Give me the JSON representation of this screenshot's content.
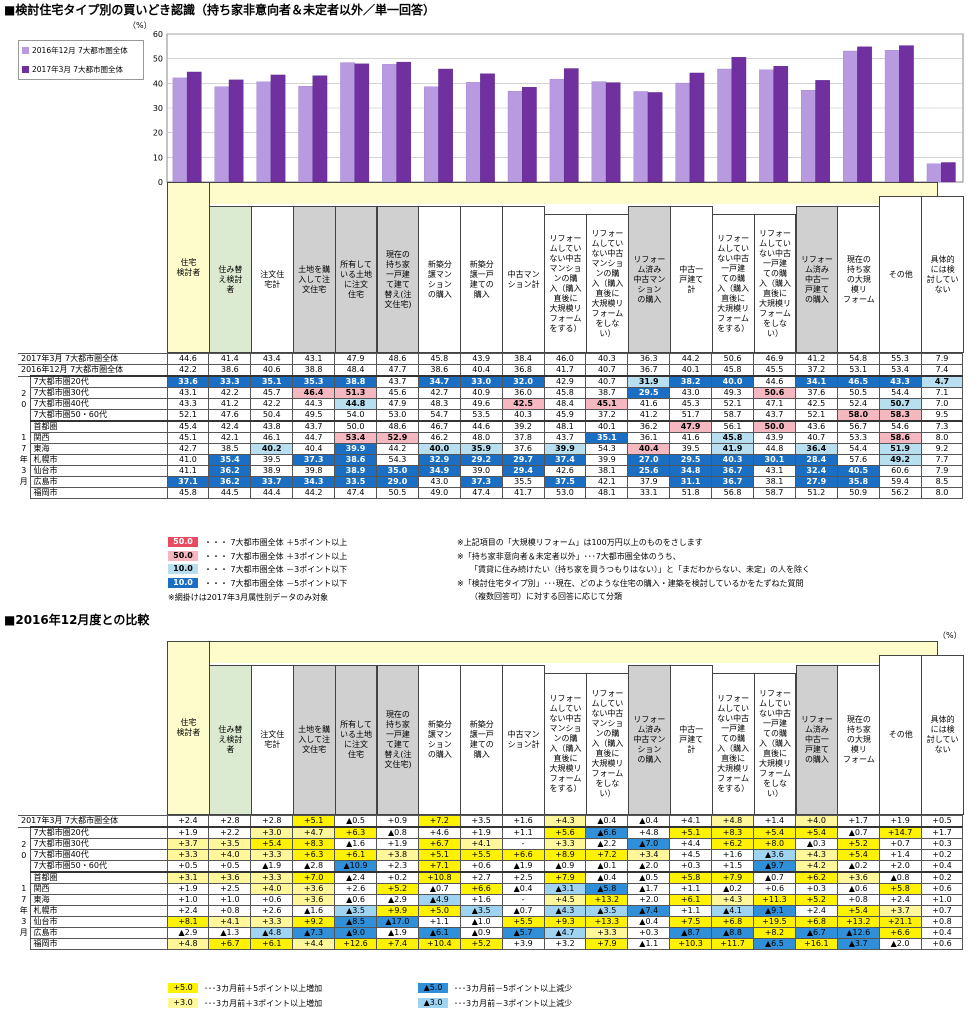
{
  "title1": "■検討住宅タイプ別の買いどき認識（持ち家非意向者＆未定者以外／単一回答）",
  "title2": "■2016年12月度との比較",
  "unit": "（%）",
  "chart_data": {
    "type": "bar",
    "categories": [
      "住宅検討者",
      "住み替え検討者",
      "注文住宅計",
      "土地を購入して注文住宅",
      "所有している土地に注文住宅",
      "現在の持ち家一戸建て建て替え（注文住宅）",
      "新築分譲マンションの購入",
      "新築分譲一戸建ての購入",
      "中古マンション計",
      "リフォームしていない中古マンションの購入（購入直後に大規模リフォームをする）",
      "リフォームしていない中古マンションの購入（購入直後に大規模リフォームをしない）",
      "リフォーム済み中古マンションの購入",
      "中古一戸建て計",
      "リフォームしていない中古一戸建ての購入（購入直後に大規模リフォームをする）",
      "リフォームしていない中古一戸建ての購入（購入直後に大規模リフォームをしない）",
      "リフォーム済み中古一戸建ての購入",
      "現在の持ち家の大規模リフォーム",
      "その他",
      "具体的には検討していない"
    ],
    "series": [
      {
        "name": "2016年12月 7大都市圏全体",
        "color": "#b89ae0",
        "values": [
          42.2,
          38.6,
          40.6,
          38.8,
          48.4,
          47.7,
          38.6,
          40.4,
          36.8,
          41.7,
          40.7,
          36.7,
          40.1,
          45.8,
          45.5,
          37.2,
          53.1,
          53.4,
          7.4
        ]
      },
      {
        "name": "2017年3月 7大都市圏全体",
        "color": "#7030a0",
        "values": [
          44.6,
          41.4,
          43.4,
          43.1,
          47.9,
          48.6,
          45.8,
          43.9,
          38.4,
          46.0,
          40.3,
          36.3,
          44.2,
          50.6,
          46.9,
          41.2,
          54.8,
          55.3,
          7.9
        ]
      }
    ],
    "ylim": [
      0,
      60
    ],
    "yticks": [
      "0",
      "10",
      "20",
      "30",
      "40",
      "50",
      "60"
    ],
    "legend": "top-left"
  },
  "headers": [
    "住宅\n検討者",
    "住み替\nえ検討\n者",
    "注文住\n宅計",
    "土地を購\n入して注\n文住宅",
    "所有して\nいる土地\nに注文\n住宅",
    "現在の\n持ち家\n一戸建\nて建て\n替え(注\n文住宅)",
    "新築分\n譲マン\nション\nの購入",
    "新築分\n譲一戸\n建ての\n購入",
    "中古マン\nション計",
    "リフォー\nムしてい\nない中古\nマンショ\nンの購\n入（購入\n直後に\n大規模リ\nフォーム\nをする）",
    "リフォー\nムしてい\nない中古\nマンショ\nンの購\n入（購入\n直後に\n大規模リ\nフォーム\nをしな\nい）",
    "リフォー\nム済み\n中古マン\nション\nの購入",
    "中古一\n戸建て\n計",
    "リフォー\nムしてい\nない中古\n一戸建\nての購\n入（購入\n直後に\n大規模リ\nフォーム\nをする）",
    "リフォー\nムしてい\nない中古\n一戸建\nての購\n入（購入\n直後に\n大規模リ\nフォーム\nをしな\nい）",
    "リフォー\nム済み\n中古一\n戸建て\nの購入",
    "現在の\n持ち家\nの大規\n模リ\nフォーム",
    "その他",
    "具体的\nには検\n討してい\nない"
  ],
  "table1": {
    "totals": [
      {
        "label": "2017年3月 7大都市圏全体",
        "cells": [
          "44.6",
          "41.4",
          "43.4",
          "43.1",
          "47.9",
          "48.6",
          "45.8",
          "43.9",
          "38.4",
          "46.0",
          "40.3",
          "36.3",
          "44.2",
          "50.6",
          "46.9",
          "41.2",
          "54.8",
          "55.3",
          "7.9"
        ]
      },
      {
        "label": "2016年12月 7大都市圏全体",
        "cells": [
          "42.2",
          "38.6",
          "40.6",
          "38.8",
          "48.4",
          "47.7",
          "38.6",
          "40.4",
          "36.8",
          "41.7",
          "40.7",
          "36.7",
          "40.1",
          "45.8",
          "45.5",
          "37.2",
          "53.1",
          "53.4",
          "7.4"
        ]
      }
    ],
    "age_group": "2017年3月",
    "ages": [
      {
        "label": "7大都市圏20代",
        "cells": [
          "33.6",
          "33.3",
          "35.1",
          "35.3",
          "38.8",
          "43.7",
          "34.7",
          "33.0",
          "32.0",
          "42.9",
          "40.7",
          "31.9",
          "38.2",
          "40.0",
          "44.6",
          "34.1",
          "46.5",
          "43.3",
          "4.7"
        ],
        "hl": [
          3,
          3,
          3,
          3,
          3,
          0,
          3,
          3,
          3,
          0,
          0,
          2,
          3,
          3,
          0,
          3,
          3,
          3,
          2
        ]
      },
      {
        "label": "7大都市圏30代",
        "cells": [
          "43.1",
          "42.2",
          "45.7",
          "46.4",
          "51.3",
          "45.6",
          "42.7",
          "40.9",
          "36.0",
          "45.8",
          "38.7",
          "29.5",
          "43.0",
          "49.3",
          "50.6",
          "37.6",
          "50.5",
          "54.4",
          "7.1"
        ],
        "hl": [
          0,
          0,
          0,
          1,
          1,
          0,
          0,
          0,
          0,
          0,
          0,
          3,
          0,
          0,
          1,
          0,
          0,
          0,
          0
        ]
      },
      {
        "label": "7大都市圏40代",
        "cells": [
          "43.3",
          "41.2",
          "42.2",
          "44.3",
          "44.8",
          "47.9",
          "48.3",
          "49.6",
          "42.5",
          "48.4",
          "45.1",
          "41.6",
          "45.3",
          "52.1",
          "47.1",
          "42.5",
          "52.4",
          "50.7",
          "7.0"
        ],
        "hl": [
          0,
          0,
          0,
          0,
          2,
          0,
          0,
          0,
          1,
          0,
          1,
          0,
          0,
          0,
          0,
          0,
          0,
          2,
          0
        ]
      },
      {
        "label": "7大都市圏50・60代",
        "cells": [
          "52.1",
          "47.6",
          "50.4",
          "49.5",
          "54.0",
          "53.0",
          "54.7",
          "53.5",
          "40.3",
          "45.9",
          "37.2",
          "41.2",
          "51.7",
          "58.7",
          "43.7",
          "52.1",
          "58.0",
          "58.3",
          "9.5"
        ],
        "hl": [
          0,
          0,
          0,
          0,
          0,
          0,
          0,
          0,
          0,
          0,
          0,
          0,
          0,
          0,
          0,
          0,
          1,
          1,
          0
        ]
      },
      {
        "label": "首都圏",
        "cells": [
          "45.4",
          "42.4",
          "43.8",
          "43.7",
          "50.0",
          "48.6",
          "46.7",
          "44.6",
          "39.2",
          "48.1",
          "40.1",
          "36.2",
          "47.9",
          "56.1",
          "50.0",
          "43.6",
          "56.7",
          "54.6",
          "7.3"
        ],
        "hl": [
          0,
          0,
          0,
          0,
          0,
          0,
          0,
          0,
          0,
          0,
          0,
          0,
          1,
          0,
          1,
          0,
          0,
          0,
          0
        ]
      },
      {
        "label": "関西",
        "cells": [
          "45.1",
          "42.1",
          "46.1",
          "44.7",
          "53.4",
          "52.9",
          "46.2",
          "48.0",
          "37.8",
          "43.7",
          "35.1",
          "36.1",
          "41.6",
          "45.8",
          "43.9",
          "40.7",
          "53.3",
          "58.6",
          "8.0"
        ],
        "hl": [
          0,
          0,
          0,
          0,
          1,
          1,
          0,
          0,
          0,
          0,
          3,
          0,
          0,
          2,
          0,
          0,
          0,
          1,
          0
        ]
      },
      {
        "label": "東海",
        "cells": [
          "42.7",
          "38.5",
          "40.2",
          "40.4",
          "39.9",
          "44.2",
          "40.0",
          "35.9",
          "37.6",
          "39.9",
          "54.3",
          "40.4",
          "39.5",
          "41.9",
          "44.8",
          "36.4",
          "54.4",
          "51.9",
          "9.2"
        ],
        "hl": [
          0,
          0,
          2,
          0,
          3,
          0,
          2,
          2,
          0,
          2,
          0,
          1,
          0,
          2,
          0,
          2,
          0,
          2,
          0
        ]
      },
      {
        "label": "札幌市",
        "cells": [
          "41.0",
          "35.4",
          "39.5",
          "37.3",
          "38.6",
          "54.3",
          "32.9",
          "29.2",
          "29.7",
          "37.4",
          "39.9",
          "27.0",
          "29.5",
          "40.3",
          "30.1",
          "28.4",
          "57.6",
          "49.2",
          "7.7"
        ],
        "hl": [
          0,
          3,
          0,
          3,
          3,
          0,
          3,
          3,
          3,
          3,
          0,
          3,
          3,
          3,
          3,
          3,
          0,
          2,
          0
        ]
      },
      {
        "label": "仙台市",
        "cells": [
          "41.1",
          "36.2",
          "38.9",
          "39.8",
          "38.9",
          "35.0",
          "34.9",
          "39.0",
          "29.4",
          "42.6",
          "38.1",
          "25.6",
          "34.8",
          "36.7",
          "43.1",
          "32.4",
          "40.5",
          "60.6",
          "7.9"
        ],
        "hl": [
          0,
          3,
          0,
          0,
          3,
          3,
          3,
          0,
          3,
          0,
          0,
          3,
          3,
          3,
          0,
          3,
          3,
          0,
          0
        ]
      },
      {
        "label": "広島市",
        "cells": [
          "37.1",
          "36.2",
          "33.7",
          "34.3",
          "33.5",
          "29.0",
          "43.0",
          "37.3",
          "35.5",
          "37.5",
          "42.1",
          "37.9",
          "31.1",
          "36.7",
          "38.1",
          "27.9",
          "35.8",
          "59.4",
          "8.5"
        ],
        "hl": [
          3,
          3,
          3,
          3,
          3,
          3,
          0,
          3,
          0,
          3,
          0,
          0,
          3,
          3,
          0,
          3,
          3,
          0,
          0
        ]
      },
      {
        "label": "福岡市",
        "cells": [
          "45.8",
          "44.5",
          "44.4",
          "44.2",
          "47.4",
          "50.5",
          "49.0",
          "47.4",
          "41.7",
          "53.0",
          "48.1",
          "33.1",
          "51.8",
          "56.8",
          "58.7",
          "51.2",
          "50.9",
          "56.2",
          "8.0"
        ],
        "hl": [
          0,
          0,
          0,
          0,
          0,
          0,
          0,
          0,
          0,
          0,
          0,
          0,
          0,
          0,
          0,
          0,
          0,
          0,
          0
        ]
      }
    ]
  },
  "legend1": [
    {
      "sample": "50.0",
      "text": "・・・ 7大都市圏全体 ＋5ポイント以上"
    },
    {
      "sample": "50.0",
      "text": "・・・ 7大都市圏全体 ＋3ポイント以上"
    },
    {
      "sample": "10.0",
      "text": "・・・ 7大都市圏全体 －3ポイント以下"
    },
    {
      "sample": "10.0",
      "text": "・・・ 7大都市圏全体 －5ポイント以下"
    }
  ],
  "note_mesh": "※網掛けは2017年3月属性別データのみ対象",
  "notes": [
    "※上記項目の「大規模リフォーム」は100万円以上のものをさします",
    "※「持ち家非意向者＆未定者以外」･･･7大都市圏全体のうち、",
    "「賃貸に住み続けたい（持ち家を買うつもりはない）」と「まだわからない、未定」の人を除く",
    "※「検討住宅タイプ別」･･･現在、どのような住宅の購入・建築を検討しているかをたずねた質問",
    "（複数回答可）に対する回答に応じて分類"
  ],
  "table2": {
    "total": {
      "label": "2017年3月 7大都市圏全体",
      "cells": [
        "+2.4",
        "+2.8",
        "+2.8",
        "+5.1",
        "▲0.5",
        "+0.9",
        "+7.2",
        "+3.5",
        "+1.6",
        "+4.3",
        "▲0.4",
        "▲0.4",
        "+4.1",
        "+4.8",
        "+1.4",
        "+4.0",
        "+1.7",
        "+1.9",
        "+0.5"
      ],
      "hl": [
        0,
        0,
        0,
        5,
        0,
        0,
        5,
        0,
        0,
        6,
        0,
        0,
        0,
        6,
        0,
        6,
        0,
        0,
        0
      ]
    },
    "rows": [
      {
        "label": "7大都市圏20代",
        "cells": [
          "+1.9",
          "+2.2",
          "+3.0",
          "+4.7",
          "+6.3",
          "▲0.8",
          "+4.6",
          "+1.9",
          "+1.1",
          "+5.6",
          "▲6.6",
          "+4.8",
          "+5.1",
          "+8.3",
          "+5.4",
          "+5.4",
          "▲0.7",
          "+14.7",
          "+1.7"
        ],
        "hl": [
          0,
          0,
          6,
          6,
          5,
          0,
          0,
          0,
          0,
          5,
          7,
          0,
          5,
          5,
          5,
          5,
          0,
          5,
          0
        ]
      },
      {
        "label": "7大都市圏30代",
        "cells": [
          "+3.7",
          "+3.5",
          "+5.4",
          "+8.3",
          "▲1.6",
          "+1.9",
          "+6.7",
          "+4.1",
          "-",
          "+3.3",
          "▲2.2",
          "▲7.0",
          "+4.4",
          "+6.2",
          "+8.0",
          "▲0.3",
          "+5.2",
          "+0.7",
          "+0.3"
        ],
        "hl": [
          6,
          6,
          5,
          5,
          0,
          0,
          5,
          6,
          0,
          6,
          0,
          7,
          0,
          5,
          5,
          0,
          5,
          0,
          0
        ]
      },
      {
        "label": "7大都市圏40代",
        "cells": [
          "+3.3",
          "+4.0",
          "+3.3",
          "+6.3",
          "+6.1",
          "+3.8",
          "+5.1",
          "+5.5",
          "+6.6",
          "+8.9",
          "+7.2",
          "+3.4",
          "+4.5",
          "+1.6",
          "▲3.6",
          "+4.3",
          "+5.4",
          "+1.4",
          "+0.2"
        ],
        "hl": [
          6,
          6,
          6,
          5,
          5,
          6,
          5,
          5,
          5,
          5,
          5,
          6,
          0,
          0,
          8,
          6,
          5,
          0,
          0
        ]
      },
      {
        "label": "7大都市圏50・60代",
        "cells": [
          "+0.5",
          "+0.5",
          "▲1.9",
          "▲2.8",
          "▲10.9",
          "+2.3",
          "+7.1",
          "+0.6",
          "▲1.9",
          "▲0.9",
          "▲0.1",
          "▲2.0",
          "+0.3",
          "+1.5",
          "▲9.7",
          "+4.2",
          "▲0.2",
          "+2.0",
          "+0.4"
        ],
        "hl": [
          0,
          0,
          0,
          0,
          7,
          0,
          5,
          0,
          0,
          0,
          0,
          0,
          0,
          0,
          7,
          6,
          0,
          0,
          0
        ]
      },
      {
        "label": "首都圏",
        "cells": [
          "+3.1",
          "+3.6",
          "+3.3",
          "+7.0",
          "▲2.4",
          "+0.2",
          "+10.8",
          "+2.7",
          "+2.5",
          "+7.9",
          "▲0.4",
          "▲0.5",
          "+5.8",
          "+7.9",
          "▲0.7",
          "+6.2",
          "+3.6",
          "▲0.8",
          "+0.2"
        ],
        "hl": [
          6,
          6,
          6,
          5,
          0,
          0,
          5,
          0,
          0,
          5,
          0,
          0,
          5,
          5,
          0,
          5,
          6,
          0,
          0
        ]
      },
      {
        "label": "関西",
        "cells": [
          "+1.9",
          "+2.5",
          "+4.0",
          "+3.6",
          "+2.6",
          "+5.2",
          "▲0.7",
          "+6.6",
          "▲0.4",
          "▲3.1",
          "▲5.8",
          "▲1.7",
          "+1.1",
          "▲0.2",
          "+0.6",
          "+0.3",
          "▲0.6",
          "+5.8",
          "+0.6"
        ],
        "hl": [
          0,
          0,
          6,
          6,
          0,
          5,
          0,
          5,
          0,
          8,
          7,
          0,
          0,
          0,
          0,
          0,
          0,
          5,
          0
        ]
      },
      {
        "label": "東海",
        "cells": [
          "+1.0",
          "+1.0",
          "+0.6",
          "+3.6",
          "▲0.6",
          "▲2.9",
          "▲4.9",
          "+1.6",
          "-",
          "+4.5",
          "+13.2",
          "+2.0",
          "+6.1",
          "+4.3",
          "+11.3",
          "+5.2",
          "+0.8",
          "+2.4",
          "+1.0"
        ],
        "hl": [
          0,
          0,
          0,
          6,
          0,
          0,
          8,
          0,
          0,
          6,
          5,
          0,
          5,
          6,
          5,
          5,
          0,
          0,
          0
        ]
      },
      {
        "label": "札幌市",
        "cells": [
          "+2.4",
          "+0.8",
          "+2.6",
          "▲1.6",
          "▲3.5",
          "+9.9",
          "+5.0",
          "▲3.5",
          "▲0.7",
          "▲4.3",
          "▲3.5",
          "▲7.4",
          "+1.1",
          "▲4.1",
          "▲9.1",
          "+2.4",
          "+5.4",
          "+3.7",
          "+0.7"
        ],
        "hl": [
          0,
          0,
          0,
          0,
          8,
          5,
          5,
          8,
          0,
          8,
          8,
          7,
          0,
          8,
          7,
          0,
          5,
          6,
          0
        ]
      },
      {
        "label": "仙台市",
        "cells": [
          "+8.1",
          "+4.1",
          "+3.3",
          "+9.2",
          "▲8.5",
          "▲17.0",
          "+1.1",
          "▲1.0",
          "+5.5",
          "+9.3",
          "+13.3",
          "▲0.4",
          "+7.5",
          "+6.8",
          "+19.5",
          "+6.8",
          "+13.2",
          "+21.1",
          "+0.8"
        ],
        "hl": [
          5,
          6,
          6,
          5,
          7,
          7,
          0,
          0,
          5,
          5,
          5,
          0,
          5,
          5,
          5,
          5,
          5,
          5,
          0
        ]
      },
      {
        "label": "広島市",
        "cells": [
          "▲2.9",
          "▲1.3",
          "▲4.8",
          "▲7.3",
          "▲9.0",
          "▲1.9",
          "▲6.1",
          "▲0.9",
          "▲5.7",
          "▲4.7",
          "+3.3",
          "+0.3",
          "▲8.7",
          "▲8.8",
          "+8.2",
          "▲6.7",
          "▲12.6",
          "+6.6",
          "+0.4"
        ],
        "hl": [
          0,
          0,
          8,
          7,
          7,
          0,
          7,
          0,
          7,
          8,
          6,
          0,
          7,
          7,
          5,
          7,
          7,
          5,
          0
        ]
      },
      {
        "label": "福岡市",
        "cells": [
          "+4.8",
          "+6.7",
          "+6.1",
          "+4.4",
          "+12.6",
          "+7.4",
          "+10.4",
          "+5.2",
          "+3.9",
          "+3.2",
          "+7.9",
          "▲1.1",
          "+10.3",
          "+11.7",
          "▲6.5",
          "+16.1",
          "▲3.7",
          "▲2.0",
          "+0.6"
        ],
        "hl": [
          6,
          5,
          5,
          6,
          5,
          5,
          5,
          5,
          0,
          0,
          5,
          0,
          5,
          5,
          7,
          5,
          7,
          0,
          0
        ]
      }
    ]
  },
  "legend2": [
    {
      "sample": "+5.0",
      "text": "･･･3カ月前＋5ポイント以上増加"
    },
    {
      "sample": "+3.0",
      "text": "･･･3カ月前＋3ポイント以上増加"
    },
    {
      "sample": "▲5.0",
      "text": "･･･3カ月前－5ポイント以上減少"
    },
    {
      "sample": "▲3.0",
      "text": "･･･3カ月前－3ポイント以上減少"
    }
  ]
}
